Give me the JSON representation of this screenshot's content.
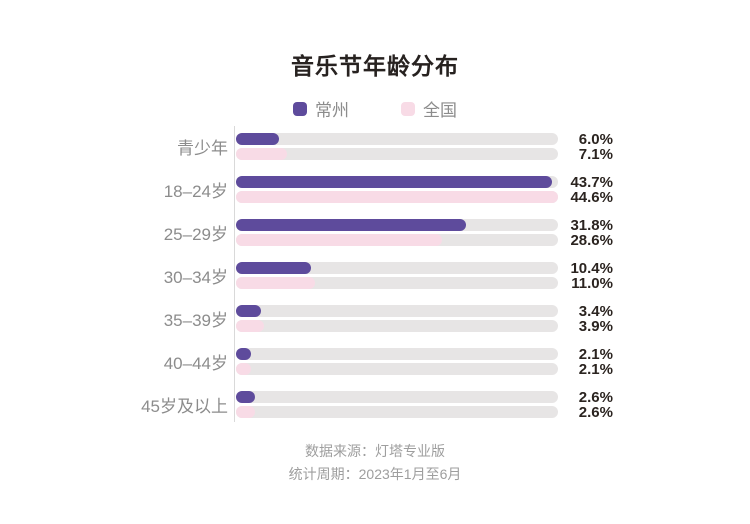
{
  "chart_data": {
    "type": "bar",
    "orientation": "horizontal",
    "title": "音乐节年龄分布",
    "categories": [
      "青少年",
      "18–24岁",
      "25–29岁",
      "30–34岁",
      "35–39岁",
      "40–44岁",
      "45岁及以上"
    ],
    "series": [
      {
        "name": "常州",
        "color": "#5E4B9C",
        "values": [
          6.0,
          43.7,
          31.8,
          10.4,
          3.4,
          2.1,
          2.6
        ]
      },
      {
        "name": "全国",
        "color": "#F8DBE6",
        "values": [
          7.1,
          44.6,
          28.6,
          11.0,
          3.9,
          2.1,
          2.6
        ]
      }
    ],
    "value_suffix": "%",
    "xlim": [
      0,
      44.6
    ],
    "track_color": "#E7E5E5",
    "axis_line_color": "#D9D9D9",
    "label_color": "#8C8C8C",
    "value_label_color": "#2B2420",
    "legend_position": "top",
    "grid": false,
    "data_labels": true
  },
  "footer": {
    "source": "数据来源：灯塔专业版",
    "period": "统计周期：2023年1月至6月"
  }
}
